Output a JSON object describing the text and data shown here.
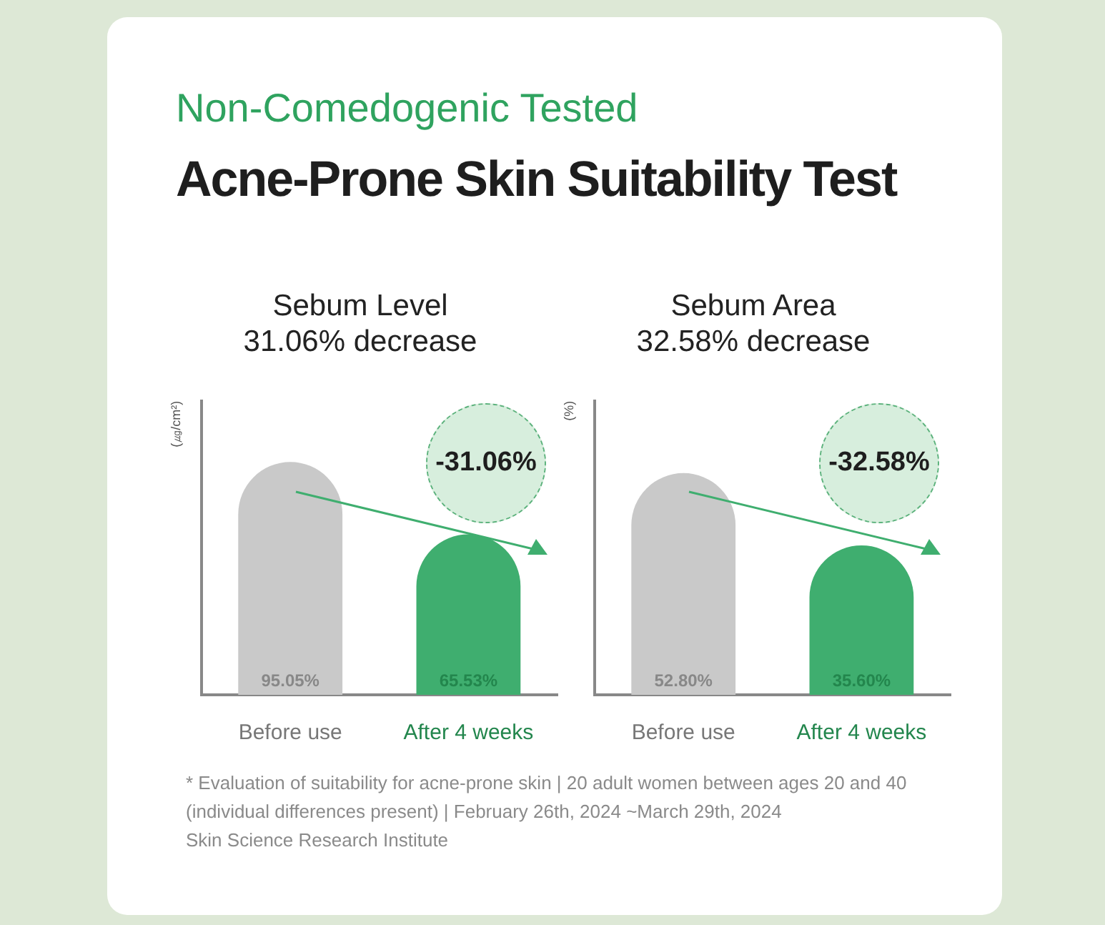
{
  "chart_data": [
    {
      "type": "other",
      "subtitle": "Non-Comedogenic Tested",
      "title": "Acne-Prone Skin Suitability Test"
    },
    {
      "type": "bar",
      "title": "Sebum Level",
      "subtitle": "31.06% decrease",
      "ylabel": "(㎍/cm²)",
      "categories": [
        "Before use",
        "After 4 weeks"
      ],
      "values": [
        95.05,
        65.53
      ],
      "value_labels": [
        "95.05%",
        "65.53%"
      ],
      "colors": [
        "#c9c9c9",
        "#3fae6f"
      ],
      "annotations": [
        "-31.06%"
      ]
    },
    {
      "type": "bar",
      "title": "Sebum Area",
      "subtitle": "32.58% decrease",
      "ylabel": "(%)",
      "categories": [
        "Before use",
        "After 4 weeks"
      ],
      "values": [
        52.8,
        35.6
      ],
      "value_labels": [
        "52.80%",
        "35.60%"
      ],
      "colors": [
        "#c9c9c9",
        "#3fae6f"
      ],
      "annotations": [
        "-32.58%"
      ]
    },
    {
      "type": "other",
      "annotations": [
        "* Evaluation of suitability for acne-prone skin | 20 adult women between ages 20 and 40 (individual differences present) | February 26th, 2024 ~March 29th, 2024",
        "Skin Science Research Institute"
      ]
    }
  ]
}
